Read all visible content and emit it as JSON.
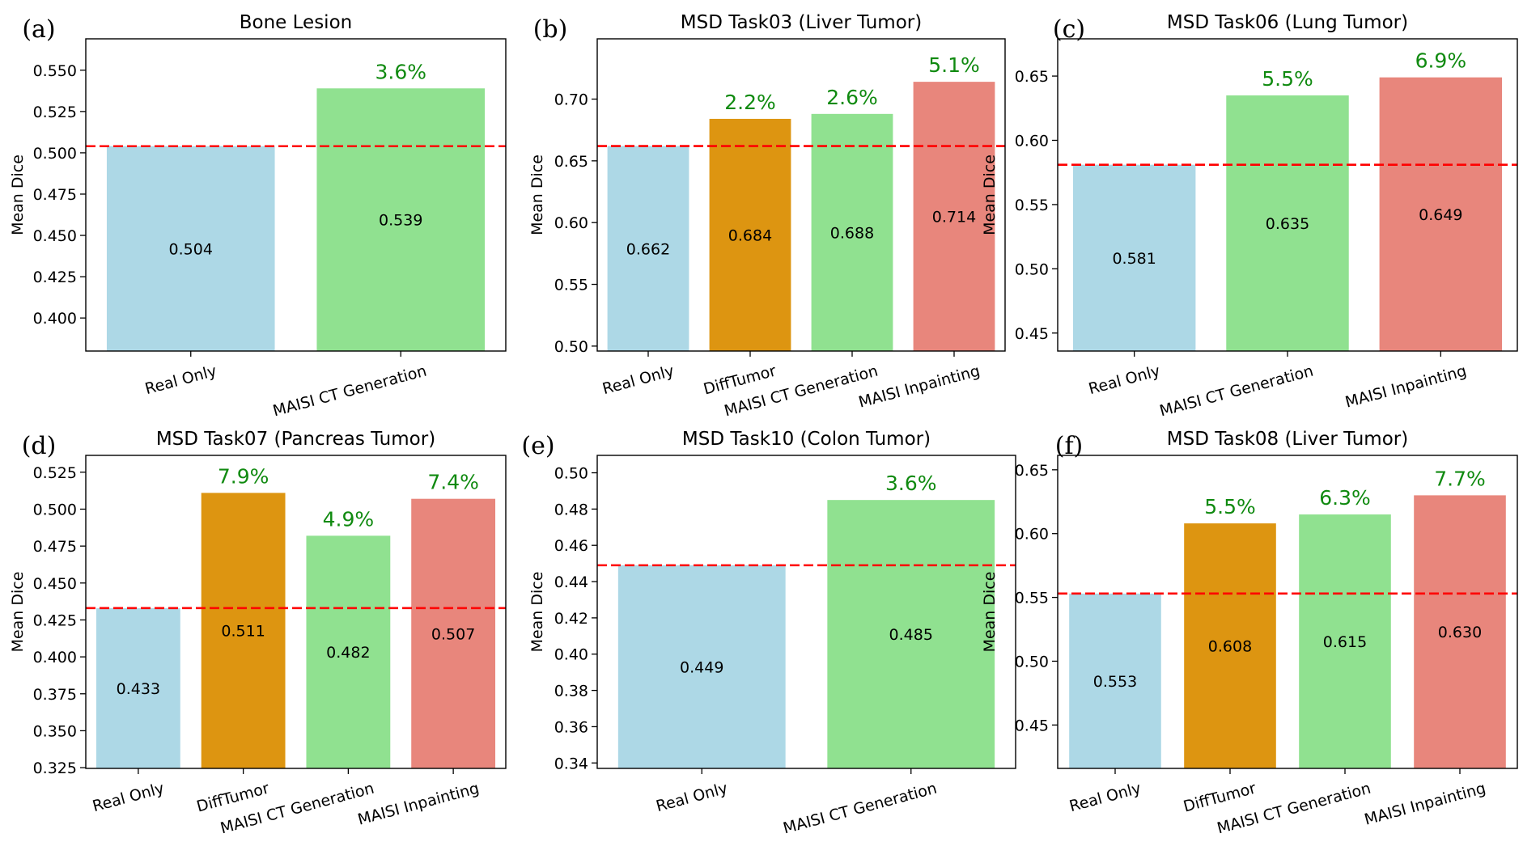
{
  "colors": {
    "Real Only": "#add8e6",
    "DiffTumor": "#dd9511",
    "MAISI CT Generation": "#90e190",
    "MAISI Inpainting": "#e8867c",
    "baseline": "#ff0000",
    "improvement": "#108a10"
  },
  "chart_data": [
    {
      "panel": "(a)",
      "type": "bar",
      "title": "Bone Lesion",
      "ylabel": "Mean Dice",
      "categories": [
        "Real Only",
        "MAISI CT Generation"
      ],
      "values": [
        0.504,
        0.539
      ],
      "value_labels": [
        "0.504",
        "0.539"
      ],
      "improvements": [
        "",
        "3.6%"
      ],
      "yticks": [
        "0.400",
        "0.425",
        "0.450",
        "0.475",
        "0.500",
        "0.525",
        "0.550"
      ],
      "ylim": [
        0.38,
        0.569
      ],
      "baseline": 0.504
    },
    {
      "panel": "(b)",
      "type": "bar",
      "title": "MSD Task03 (Liver Tumor)",
      "ylabel": "Mean Dice",
      "categories": [
        "Real Only",
        "DiffTumor",
        "MAISI CT Generation",
        "MAISI Inpainting"
      ],
      "values": [
        0.662,
        0.684,
        0.688,
        0.714
      ],
      "value_labels": [
        "0.662",
        "0.684",
        "0.688",
        "0.714"
      ],
      "improvements": [
        "",
        "2.2%",
        "2.6%",
        "5.1%"
      ],
      "yticks": [
        "0.50",
        "0.55",
        "0.60",
        "0.65",
        "0.70"
      ],
      "ylim": [
        0.496,
        0.7488
      ],
      "baseline": 0.662
    },
    {
      "panel": "(c)",
      "type": "bar",
      "title": "MSD Task06 (Lung Tumor)",
      "ylabel": "Mean Dice",
      "categories": [
        "Real Only",
        "MAISI CT Generation",
        "MAISI Inpainting"
      ],
      "values": [
        0.581,
        0.635,
        0.649
      ],
      "value_labels": [
        "0.581",
        "0.635",
        "0.649"
      ],
      "improvements": [
        "",
        "5.5%",
        "6.9%"
      ],
      "yticks": [
        "0.45",
        "0.50",
        "0.55",
        "0.60",
        "0.65"
      ],
      "ylim": [
        0.436,
        0.679
      ],
      "baseline": 0.581
    },
    {
      "panel": "(d)",
      "type": "bar",
      "title": "MSD Task07 (Pancreas Tumor)",
      "ylabel": "Mean Dice",
      "categories": [
        "Real Only",
        "DiffTumor",
        "MAISI CT Generation",
        "MAISI Inpainting"
      ],
      "values": [
        0.433,
        0.511,
        0.482,
        0.507
      ],
      "value_labels": [
        "0.433",
        "0.511",
        "0.482",
        "0.507"
      ],
      "improvements": [
        "",
        "7.9%",
        "4.9%",
        "7.4%"
      ],
      "yticks": [
        "0.325",
        "0.350",
        "0.375",
        "0.400",
        "0.425",
        "0.450",
        "0.475",
        "0.500",
        "0.525"
      ],
      "ylim": [
        0.3245,
        0.5364
      ],
      "baseline": 0.433
    },
    {
      "panel": "(e)",
      "type": "bar",
      "title": "MSD Task10 (Colon Tumor)",
      "ylabel": "Mean Dice",
      "categories": [
        "Real Only",
        "MAISI CT Generation"
      ],
      "values": [
        0.449,
        0.485
      ],
      "value_labels": [
        "0.449",
        "0.485"
      ],
      "improvements": [
        "",
        "3.6%"
      ],
      "yticks": [
        "0.34",
        "0.36",
        "0.38",
        "0.40",
        "0.42",
        "0.44",
        "0.46",
        "0.48",
        "0.50"
      ],
      "ylim": [
        0.337,
        0.5096
      ],
      "baseline": 0.449
    },
    {
      "panel": "(f)",
      "type": "bar",
      "title": "MSD Task08 (Liver Tumor)",
      "ylabel": "Mean Dice",
      "categories": [
        "Real Only",
        "DiffTumor",
        "MAISI CT Generation",
        "MAISI Inpainting"
      ],
      "values": [
        0.553,
        0.608,
        0.615,
        0.63
      ],
      "value_labels": [
        "0.553",
        "0.608",
        "0.615",
        "0.630"
      ],
      "improvements": [
        "",
        "5.5%",
        "6.3%",
        "7.7%"
      ],
      "yticks": [
        "0.45",
        "0.50",
        "0.55",
        "0.60",
        "0.65"
      ],
      "ylim": [
        0.416,
        0.6613
      ],
      "baseline": 0.553
    }
  ]
}
